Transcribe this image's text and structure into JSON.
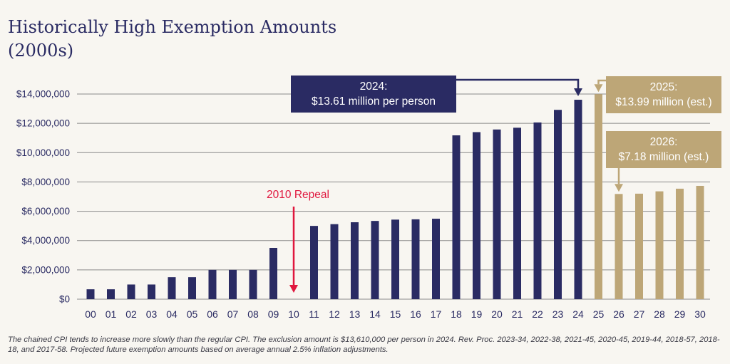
{
  "title": {
    "line1": "Historically High Exemption Amounts",
    "line2": "(2000s)"
  },
  "footnote": "The chained CPI tends to increase more slowly than the regular CPI. The exclusion amount is $13,610,000 per person in 2024. Rev. Proc. 2023-34, 2022-38, 2021-45, 2020-45, 2019-44, 2018-57, 2018-18, and 2017-58. Projected future exemption amounts based on average annual 2.5% inflation adjustments.",
  "colors": {
    "actual": "#2a2b63",
    "estimated": "#bda677",
    "repeal": "#e0173e",
    "grid": "#8a8a8a",
    "text": "#2a2b63"
  },
  "chart_data": {
    "type": "bar",
    "title": "Historically High Exemption Amounts (2000s)",
    "xlabel": "",
    "ylabel": "",
    "ylim": [
      0,
      14000000
    ],
    "yticks": [
      0,
      2000000,
      4000000,
      6000000,
      8000000,
      10000000,
      12000000,
      14000000
    ],
    "ytick_labels": [
      "$0",
      "$2,000,000",
      "$4,000,000",
      "$6,000,000",
      "$8,000,000",
      "$10,000,000",
      "$12,000,000",
      "$14,000,000"
    ],
    "grid": true,
    "categories": [
      "00",
      "01",
      "02",
      "03",
      "04",
      "05",
      "06",
      "07",
      "08",
      "09",
      "10",
      "11",
      "12",
      "13",
      "14",
      "15",
      "16",
      "17",
      "18",
      "19",
      "20",
      "21",
      "22",
      "23",
      "24",
      "25",
      "26",
      "27",
      "28",
      "29",
      "30"
    ],
    "values": [
      675000,
      675000,
      1000000,
      1000000,
      1500000,
      1500000,
      2000000,
      2000000,
      2000000,
      3500000,
      0,
      5000000,
      5120000,
      5250000,
      5340000,
      5430000,
      5450000,
      5490000,
      11180000,
      11400000,
      11580000,
      11700000,
      12060000,
      12920000,
      13610000,
      13990000,
      7180000,
      7200000,
      7360000,
      7540000,
      7730000
    ],
    "estimated_from_index": 25,
    "annotations": [
      {
        "id": "a2024",
        "line1": "2024:",
        "line2": "$13.61 million per person",
        "target": "24",
        "style": "actual"
      },
      {
        "id": "a2025",
        "line1": "2025:",
        "line2": "$13.99 million (est.)",
        "target": "25",
        "style": "estimated"
      },
      {
        "id": "a2026",
        "line1": "2026:",
        "line2": "$7.18 million (est.)",
        "target": "26",
        "style": "estimated"
      },
      {
        "id": "arepeal",
        "line1": "2010 Repeal",
        "target": "10",
        "style": "repeal"
      }
    ]
  }
}
